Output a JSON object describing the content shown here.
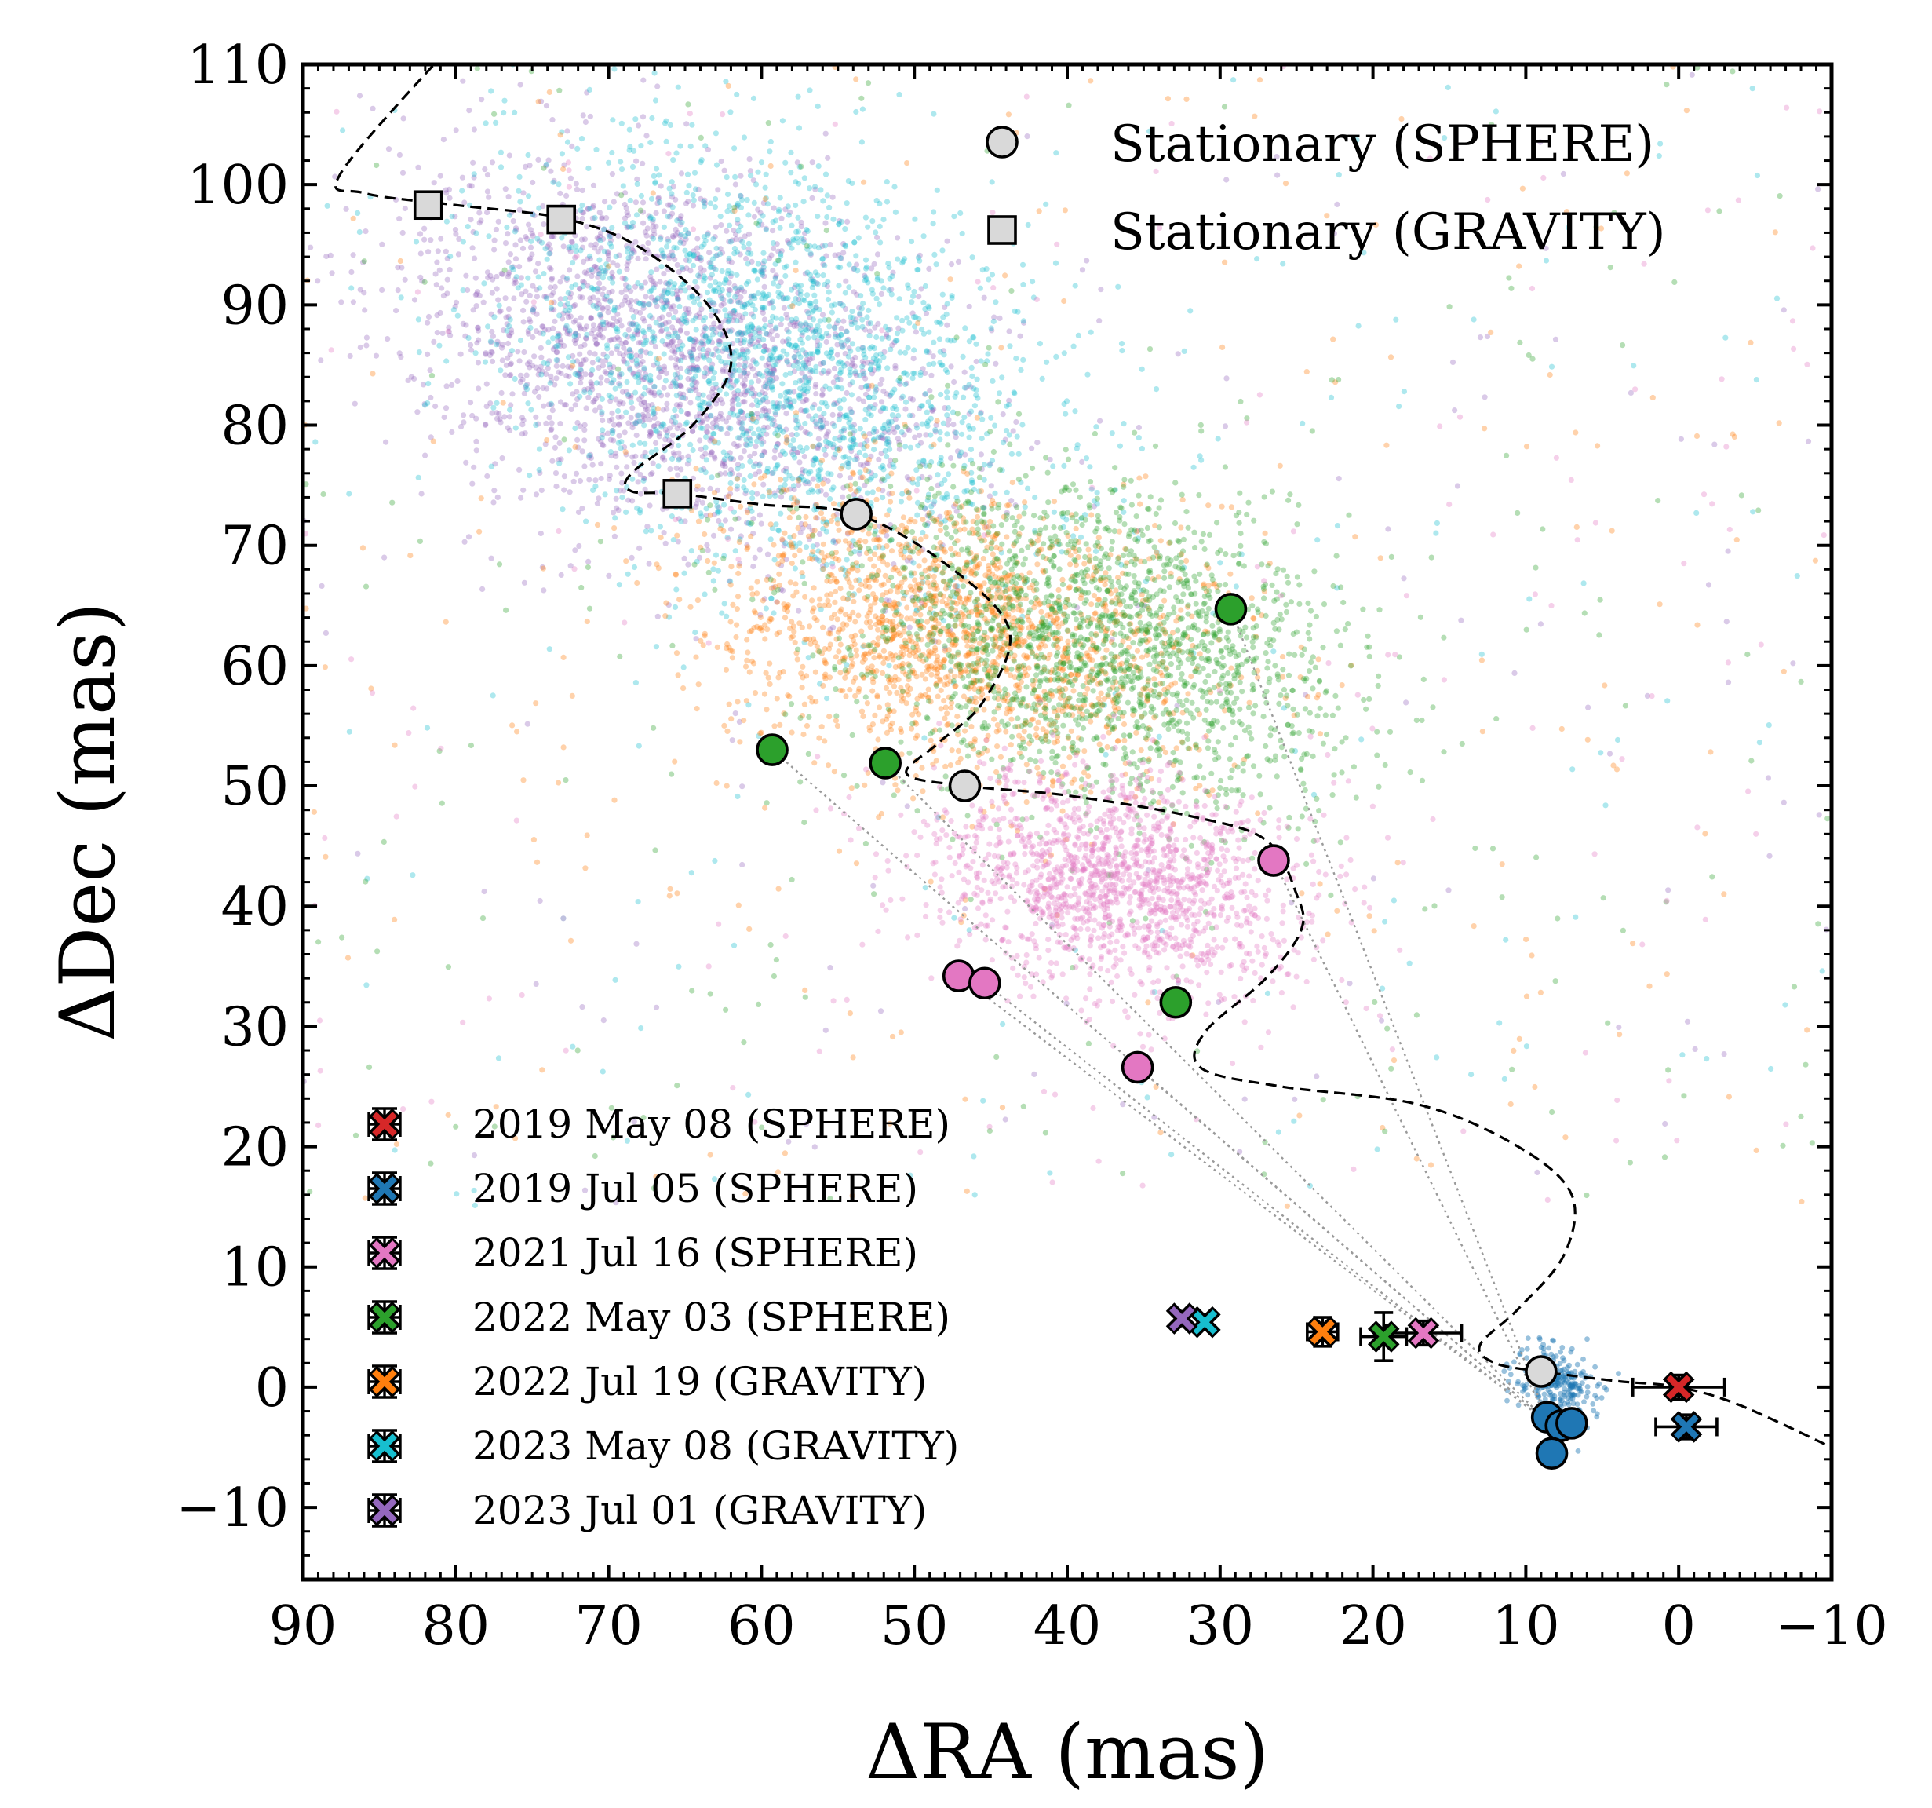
{
  "chart_data": {
    "type": "scatter",
    "title": "",
    "xlabel": "ΔRA (mas)",
    "ylabel": "ΔDec (mas)",
    "xlim": [
      90,
      -10
    ],
    "ylim": [
      -16,
      110
    ],
    "x_inverted": true,
    "xticks": [
      90,
      80,
      70,
      60,
      50,
      40,
      30,
      20,
      10,
      0,
      -10
    ],
    "yticks": [
      -10,
      0,
      10,
      20,
      30,
      40,
      50,
      60,
      70,
      80,
      90,
      100,
      110
    ],
    "tick_labels_x": [
      "90",
      "80",
      "70",
      "60",
      "50",
      "40",
      "30",
      "20",
      "10",
      "0",
      "−10"
    ],
    "tick_labels_y": [
      "−10",
      "0",
      "10",
      "20",
      "30",
      "40",
      "50",
      "60",
      "70",
      "80",
      "90",
      "100",
      "110"
    ],
    "grid": false,
    "legend_positions": [
      "top-right",
      "bottom-left"
    ],
    "colors": {
      "red": "#d62728",
      "blue": "#1f77b4",
      "pink": "#e377c2",
      "green": "#2ca02c",
      "orange": "#ff7f0e",
      "cyan": "#17becf",
      "purple": "#9467bd",
      "stationary": "#d9d9d9"
    },
    "stationary_legend": [
      {
        "label": "Stationary (SPHERE)",
        "marker": "circle"
      },
      {
        "label": "Stationary (GRAVITY)",
        "marker": "square"
      }
    ],
    "epochs": [
      {
        "label": "2019 May 08 (SPHERE)",
        "color": "#d62728",
        "x": 0.0,
        "y": 0.0,
        "xerr": 3.0,
        "yerr": 1.0
      },
      {
        "label": "2019 Jul 05 (SPHERE)",
        "color": "#1f77b4",
        "x": -0.5,
        "y": -3.3,
        "xerr": 2.0,
        "yerr": 1.0
      },
      {
        "label": "2021 Jul 16 (SPHERE)",
        "color": "#e377c2",
        "x": 16.7,
        "y": 4.5,
        "xerr": 2.5,
        "yerr": 1.0
      },
      {
        "label": "2022 May 03 (SPHERE)",
        "color": "#2ca02c",
        "x": 19.3,
        "y": 4.2,
        "xerr": 1.5,
        "yerr": 2.0
      },
      {
        "label": "2022 Jul 19 (GRAVITY)",
        "color": "#ff7f0e",
        "x": 23.3,
        "y": 4.6,
        "xerr": 1.0,
        "yerr": 1.2
      },
      {
        "label": "2023 May 08 (GRAVITY)",
        "color": "#17becf",
        "x": 31.0,
        "y": 5.4,
        "xerr": 0.4,
        "yerr": 0.4
      },
      {
        "label": "2023 Jul 01 (GRAVITY)",
        "color": "#9467bd",
        "x": 32.5,
        "y": 5.7,
        "xerr": 0.4,
        "yerr": 0.4
      }
    ],
    "stationary_sphere_points": [
      [
        9.0,
        1.3
      ],
      [
        46.7,
        50.0
      ],
      [
        53.8,
        72.6
      ]
    ],
    "stationary_gravity_points": [
      [
        81.8,
        98.3
      ],
      [
        73.1,
        97.1
      ],
      [
        65.5,
        74.3
      ]
    ],
    "sphere_detections": [
      {
        "color": "#1f77b4",
        "points": [
          [
            8.6,
            -2.5
          ],
          [
            7.7,
            -3.2
          ],
          [
            7.0,
            -3.0
          ],
          [
            8.3,
            -5.5
          ]
        ]
      },
      {
        "color": "#e377c2",
        "points": [
          [
            26.5,
            43.8
          ],
          [
            47.1,
            34.2
          ],
          [
            45.4,
            33.6
          ],
          [
            35.4,
            26.6
          ]
        ]
      },
      {
        "color": "#2ca02c",
        "points": [
          [
            29.3,
            64.7
          ],
          [
            59.3,
            53.0
          ],
          [
            51.9,
            51.9
          ],
          [
            32.9,
            32.0
          ]
        ]
      }
    ],
    "stationary_track": [
      [
        80,
        112
      ],
      [
        87.5,
        101
      ],
      [
        86,
        99.3
      ],
      [
        80,
        98.3
      ],
      [
        73,
        97.2
      ],
      [
        68,
        94.8
      ],
      [
        63.5,
        90
      ],
      [
        62,
        85
      ],
      [
        64.5,
        80
      ],
      [
        68.5,
        76
      ],
      [
        68.5,
        74.5
      ],
      [
        65.5,
        74.3
      ],
      [
        60,
        73.4
      ],
      [
        53.8,
        72.6
      ],
      [
        48,
        68.5
      ],
      [
        43.8,
        63
      ],
      [
        45.5,
        57
      ],
      [
        48.5,
        53.5
      ],
      [
        50.5,
        51
      ],
      [
        46.7,
        50
      ],
      [
        40,
        49.2
      ],
      [
        32,
        47.5
      ],
      [
        27,
        45.5
      ],
      [
        25,
        41
      ],
      [
        24.7,
        38
      ],
      [
        27,
        34
      ],
      [
        31,
        29.5
      ],
      [
        31.2,
        26.5
      ],
      [
        26,
        25
      ],
      [
        17,
        23.5
      ],
      [
        10.5,
        20
      ],
      [
        7,
        16
      ],
      [
        7.5,
        11
      ],
      [
        10.5,
        6.5
      ],
      [
        13,
        3.5
      ],
      [
        12,
        2
      ],
      [
        9,
        1.3
      ],
      [
        4,
        0.5
      ],
      [
        0,
        0
      ],
      [
        -4,
        -1.5
      ],
      [
        -10,
        -5
      ]
    ],
    "posterior_clouds": [
      {
        "color": "#9467bd",
        "cx": 66,
        "cy": 86,
        "sx": 9,
        "sy": 8,
        "rho": 0.3,
        "n": 2100,
        "extra": 140
      },
      {
        "color": "#17becf",
        "cx": 59,
        "cy": 85,
        "sx": 9,
        "sy": 9,
        "rho": 0.35,
        "n": 1900,
        "extra": 180
      },
      {
        "color": "#ff7f0e",
        "cx": 47,
        "cy": 63,
        "sx": 8,
        "sy": 6,
        "rho": 0.25,
        "n": 1800,
        "extra": 230
      },
      {
        "color": "#2ca02c",
        "cx": 38,
        "cy": 62,
        "sx": 8,
        "sy": 7,
        "rho": 0.3,
        "n": 1900,
        "extra": 200
      },
      {
        "color": "#e377c2",
        "cx": 37,
        "cy": 42,
        "sx": 6,
        "sy": 4.5,
        "rho": 0.2,
        "n": 1500,
        "extra": 170
      },
      {
        "color": "#1f77b4",
        "cx": 8,
        "cy": 0.5,
        "sx": 1.3,
        "sy": 1.5,
        "rho": 0.3,
        "n": 260,
        "extra": 0
      }
    ]
  }
}
